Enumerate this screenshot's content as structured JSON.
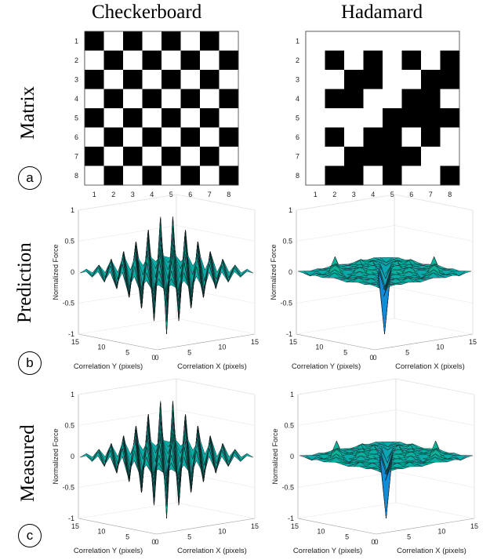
{
  "figure": {
    "column_titles": [
      "Checkerboard",
      "Hadamard"
    ],
    "row_labels": [
      "Matrix",
      "Prediction",
      "Measured"
    ],
    "panel_labels": [
      "a",
      "b",
      "c"
    ]
  },
  "chart_data": [
    {
      "type": "heatmap",
      "panel": "a-left",
      "title": "",
      "x_ticks": [
        "1",
        "2",
        "3",
        "4",
        "5",
        "6",
        "7",
        "8"
      ],
      "y_ticks": [
        "1",
        "2",
        "3",
        "4",
        "5",
        "6",
        "7",
        "8"
      ],
      "values": [
        [
          1,
          0,
          1,
          0,
          1,
          0,
          1,
          0
        ],
        [
          0,
          1,
          0,
          1,
          0,
          1,
          0,
          1
        ],
        [
          1,
          0,
          1,
          0,
          1,
          0,
          1,
          0
        ],
        [
          0,
          1,
          0,
          1,
          0,
          1,
          0,
          1
        ],
        [
          1,
          0,
          1,
          0,
          1,
          0,
          1,
          0
        ],
        [
          0,
          1,
          0,
          1,
          0,
          1,
          0,
          1
        ],
        [
          1,
          0,
          1,
          0,
          1,
          0,
          1,
          0
        ],
        [
          0,
          1,
          0,
          1,
          0,
          1,
          0,
          1
        ]
      ],
      "colors": {
        "0": "#ffffff",
        "1": "#000000"
      }
    },
    {
      "type": "heatmap",
      "panel": "a-right",
      "title": "",
      "x_ticks": [
        "1",
        "2",
        "3",
        "4",
        "5",
        "6",
        "7",
        "8"
      ],
      "y_ticks": [
        "1",
        "2",
        "3",
        "4",
        "5",
        "6",
        "7",
        "8"
      ],
      "values": [
        [
          0,
          0,
          0,
          0,
          0,
          0,
          0,
          0
        ],
        [
          0,
          1,
          0,
          1,
          0,
          1,
          0,
          1
        ],
        [
          0,
          0,
          1,
          1,
          0,
          0,
          1,
          1
        ],
        [
          0,
          1,
          1,
          0,
          0,
          1,
          1,
          0
        ],
        [
          0,
          0,
          0,
          0,
          1,
          1,
          1,
          1
        ],
        [
          0,
          1,
          0,
          1,
          1,
          0,
          1,
          0
        ],
        [
          0,
          0,
          1,
          1,
          1,
          1,
          0,
          0
        ],
        [
          0,
          1,
          1,
          0,
          1,
          0,
          0,
          1
        ]
      ],
      "colors": {
        "0": "#ffffff",
        "1": "#000000"
      }
    },
    {
      "type": "surface",
      "panel": "b-left",
      "pattern": "checkerboard",
      "zlabel": "Normalized Force",
      "xlabel": "Correlation X (pixels)",
      "ylabel": "Correlation Y (pixels)",
      "zlim": [
        -1,
        1
      ],
      "z_ticks": [
        "-1",
        "-0.5",
        "0",
        "0.5",
        "1"
      ],
      "x_ticks": [
        "0",
        "5",
        "10",
        "15"
      ],
      "y_ticks": [
        "15",
        "10",
        "5",
        "0"
      ]
    },
    {
      "type": "surface",
      "panel": "b-right",
      "pattern": "hadamard",
      "zlabel": "Normalized Force",
      "xlabel": "Correlation X (pixels)",
      "ylabel": "Correlation Y (pixels)",
      "zlim": [
        -1,
        1
      ],
      "z_ticks": [
        "-1",
        "-0.5",
        "0",
        "0.5",
        "1"
      ],
      "x_ticks": [
        "0",
        "5",
        "10",
        "15"
      ],
      "y_ticks": [
        "15",
        "10",
        "5",
        "0"
      ]
    },
    {
      "type": "surface",
      "panel": "c-left",
      "pattern": "checkerboard",
      "zlabel": "Normalized Force",
      "xlabel": "Correlation X (pixels)",
      "ylabel": "Correlation Y (pixels)",
      "zlim": [
        -1,
        1
      ],
      "z_ticks": [
        "-1",
        "-0.5",
        "0",
        "0.5",
        "1"
      ],
      "x_ticks": [
        "0",
        "5",
        "10",
        "15"
      ],
      "y_ticks": [
        "15",
        "10",
        "5",
        "0"
      ]
    },
    {
      "type": "surface",
      "panel": "c-right",
      "pattern": "hadamard",
      "zlabel": "Normalized Force",
      "xlabel": "Correlation X (pixels)",
      "ylabel": "Correlation Y (pixels)",
      "zlim": [
        -1,
        1
      ],
      "z_ticks": [
        "-1",
        "-0.5",
        "0",
        "0.5",
        "1"
      ],
      "x_ticks": [
        "0",
        "5",
        "10",
        "15"
      ],
      "y_ticks": [
        "15",
        "10",
        "5",
        "0"
      ]
    }
  ]
}
